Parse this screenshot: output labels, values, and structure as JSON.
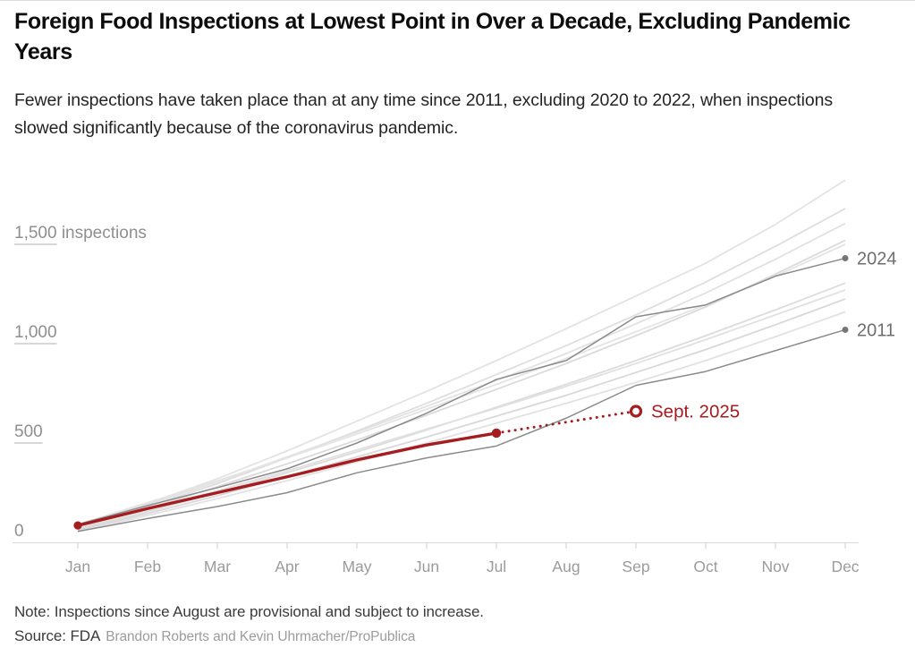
{
  "header": {
    "title": "Foreign Food Inspections at Lowest Point in Over a Decade, Excluding Pandemic Years",
    "subtitle": "Fewer inspections have taken place than at any time since 2011, excluding 2020 to 2022, when inspections slowed significantly because of the coronavirus pandemic."
  },
  "chart_data": {
    "type": "line",
    "x": [
      "Jan",
      "Feb",
      "Mar",
      "Apr",
      "May",
      "Jun",
      "Jul",
      "Aug",
      "Sep",
      "Oct",
      "Nov",
      "Dec"
    ],
    "ylim": [
      0,
      1900
    ],
    "grid": "off",
    "y_axis": {
      "unit": "inspections",
      "ticks": [
        {
          "value": 0,
          "label": "0"
        },
        {
          "value": 500,
          "label": "500"
        },
        {
          "value": 1000,
          "label": "1,000"
        },
        {
          "value": 1500,
          "label": "1,500",
          "suffix": "inspections"
        }
      ]
    },
    "colors": {
      "accent_red": "#a51d21",
      "labeled_gray_line": "#8a8a8a",
      "endpoint_dot": "#757575",
      "year_label": "#6e6e6e",
      "axis_line": "#d9d9d9",
      "tick": "#cccccc",
      "tick_label": "#9b9b9b",
      "y_label": "#8f8f8f"
    },
    "series": [
      {
        "label": "",
        "role": "background",
        "color": "#e3e3e3",
        "values": [
          80,
          195,
          320,
          460,
          610,
          760,
          915,
          1075,
          1240,
          1405,
          1600,
          1823
        ]
      },
      {
        "label": "",
        "role": "background",
        "color": "#dedede",
        "values": [
          75,
          180,
          295,
          425,
          560,
          700,
          845,
          990,
          1145,
          1310,
          1490,
          1680
        ]
      },
      {
        "label": "",
        "role": "background",
        "color": "#e1e1e1",
        "values": [
          85,
          190,
          305,
          430,
          555,
          685,
          815,
          950,
          1100,
          1255,
          1425,
          1605
        ]
      },
      {
        "label": "",
        "role": "background",
        "color": "#dadada",
        "values": [
          70,
          170,
          280,
          395,
          515,
          640,
          770,
          900,
          1040,
          1185,
          1350,
          1520
        ]
      },
      {
        "label": "",
        "role": "background",
        "color": "#e4e4e4",
        "values": [
          90,
          200,
          310,
          425,
          545,
          670,
          795,
          925,
          1060,
          1195,
          1340,
          1500
        ]
      },
      {
        "label": "",
        "role": "background",
        "color": "#dcdcdc",
        "values": [
          65,
          155,
          250,
          350,
          455,
          565,
          680,
          795,
          915,
          1040,
          1170,
          1305
        ]
      },
      {
        "label": "",
        "role": "background",
        "color": "#e0e0e0",
        "values": [
          75,
          165,
          260,
          360,
          465,
          570,
          675,
          785,
          900,
          1020,
          1145,
          1270
        ]
      },
      {
        "label": "",
        "role": "background",
        "color": "#d8d8d8",
        "values": [
          60,
          145,
          235,
          330,
          430,
          530,
          635,
          740,
          855,
          970,
          1095,
          1225
        ]
      },
      {
        "label": "",
        "role": "background",
        "color": "#e2e2e2",
        "values": [
          55,
          135,
          220,
          310,
          405,
          500,
          600,
          700,
          805,
          915,
          1035,
          1160
        ]
      },
      {
        "label": "2024",
        "role": "labeled",
        "color": "#8a8a8a",
        "endpoint_dot": true,
        "values": [
          90,
          185,
          275,
          370,
          500,
          650,
          820,
          915,
          1135,
          1195,
          1340,
          1430
        ]
      },
      {
        "label": "2011",
        "role": "labeled",
        "color": "#8a8a8a",
        "endpoint_dot": true,
        "values": [
          55,
          120,
          180,
          250,
          350,
          425,
          485,
          625,
          790,
          860,
          965,
          1070
        ]
      },
      {
        "label": "2025",
        "role": "highlight",
        "color": "#a51d21",
        "values": [
          85,
          170,
          250,
          330,
          415,
          490,
          550
        ],
        "projected": [
          {
            "month": "Aug",
            "value": 605
          },
          {
            "month": "Sep",
            "value": 660
          }
        ],
        "projection_label": "Sept. 2025"
      }
    ]
  },
  "footer": {
    "note": "Note: Inspections since August are provisional and subject to increase.",
    "source": "Source: FDA",
    "credit": "Brandon Roberts and Kevin Uhrmacher/ProPublica"
  }
}
